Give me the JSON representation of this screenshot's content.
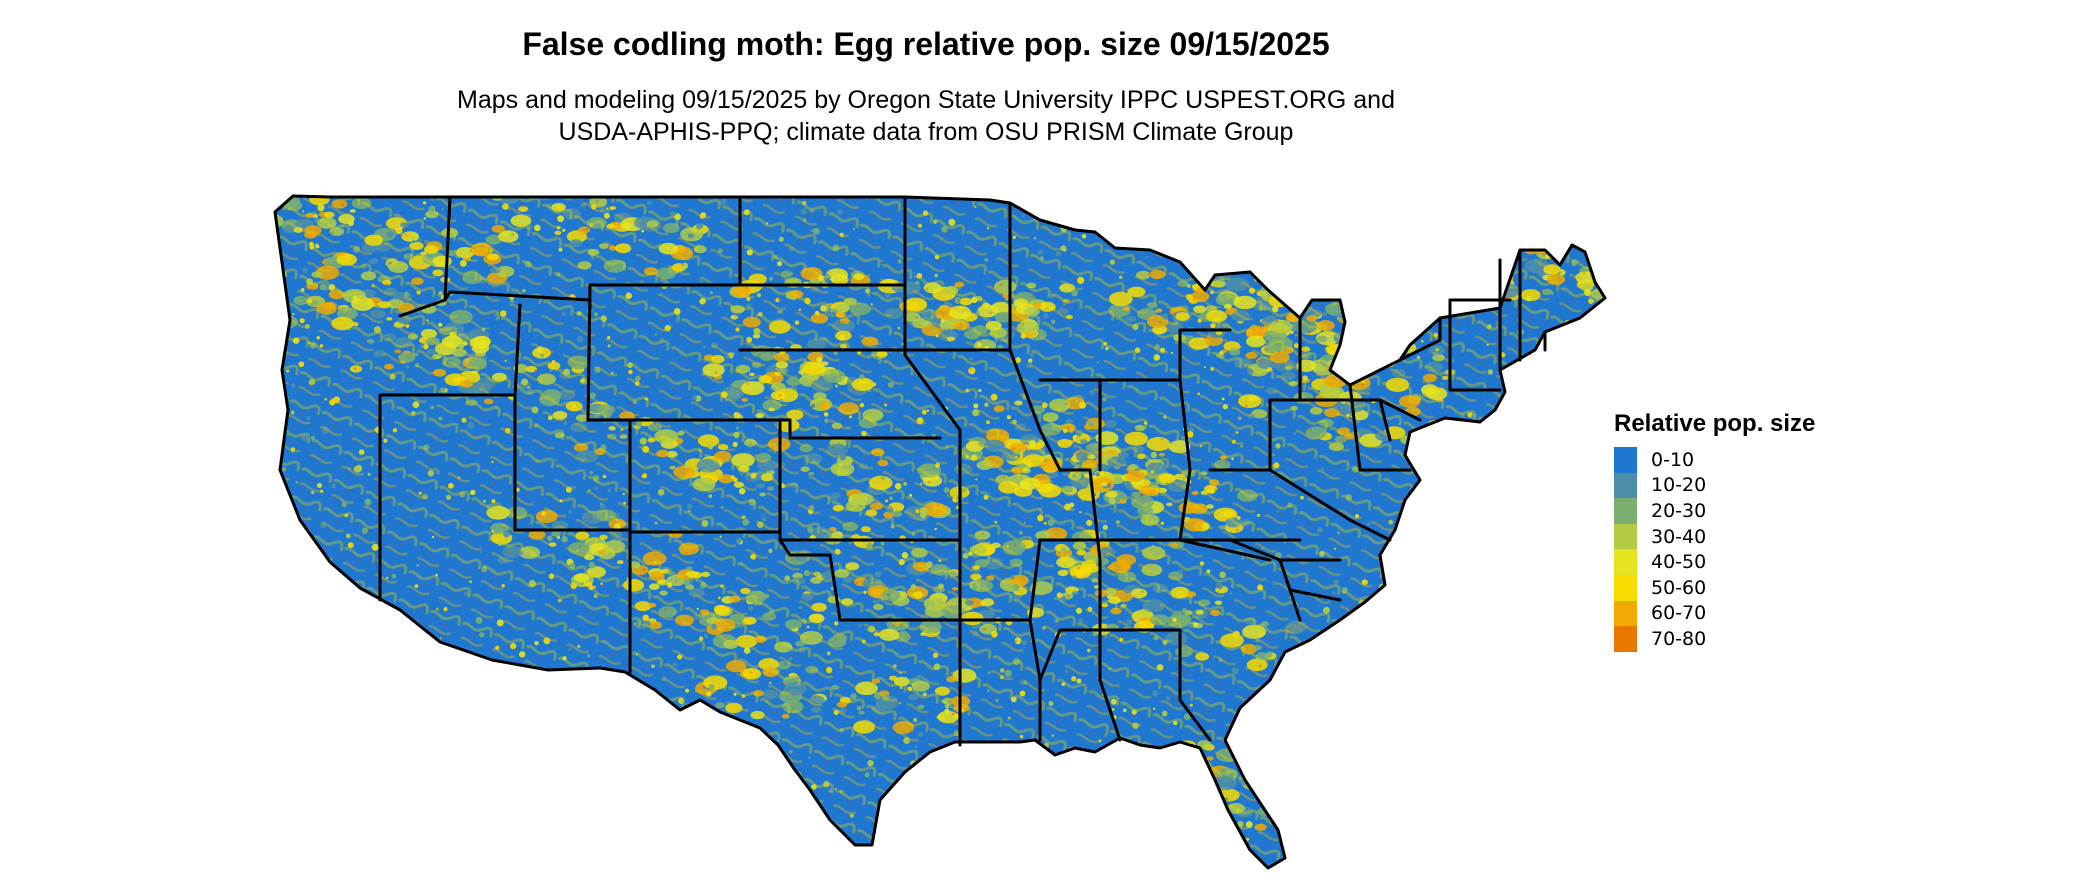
{
  "title": "False codling moth: Egg relative pop. size 09/15/2025",
  "subtitle": [
    "Maps and modeling 09/15/2025 by Oregon State University IPPC USPEST.ORG and",
    "USDA-APHIS-PPQ; climate data from OSU PRISM Climate Group"
  ],
  "map": {
    "region": "Contiguous United States",
    "dominant_class": "0-10",
    "dominant_color": "#1f77d0",
    "state_border_color": "#000000"
  },
  "legend": {
    "title": "Relative pop. size",
    "items": [
      {
        "label": "0-10",
        "color": "#1f77d0"
      },
      {
        "label": "10-20",
        "color": "#4d8fa8"
      },
      {
        "label": "20-30",
        "color": "#7aaf72"
      },
      {
        "label": "30-40",
        "color": "#b2cc46"
      },
      {
        "label": "40-50",
        "color": "#e6e420"
      },
      {
        "label": "50-60",
        "color": "#f7dc00"
      },
      {
        "label": "60-70",
        "color": "#f0aa00"
      },
      {
        "label": "70-80",
        "color": "#e87800"
      }
    ]
  }
}
